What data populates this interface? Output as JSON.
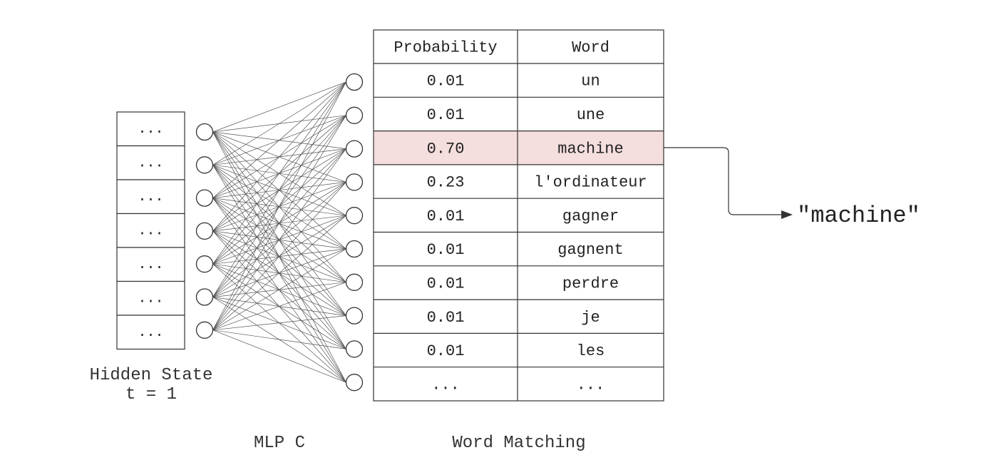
{
  "hidden_state": {
    "cells": [
      "...",
      "...",
      "...",
      "...",
      "...",
      "...",
      "..."
    ],
    "caption_line1": "Hidden State",
    "caption_line2": "t = 1"
  },
  "mlp": {
    "caption": "MLP C",
    "input_node_count": 7,
    "output_node_count": 10
  },
  "table": {
    "caption": "Word Matching",
    "headers": {
      "probability": "Probability",
      "word": "Word"
    },
    "rows": [
      {
        "probability": "0.01",
        "word": "un"
      },
      {
        "probability": "0.01",
        "word": "une"
      },
      {
        "probability": "0.70",
        "word": "machine"
      },
      {
        "probability": "0.23",
        "word": "l'ordinateur"
      },
      {
        "probability": "0.01",
        "word": "gagner"
      },
      {
        "probability": "0.01",
        "word": "gagnent"
      },
      {
        "probability": "0.01",
        "word": "perdre"
      },
      {
        "probability": "0.01",
        "word": "je"
      },
      {
        "probability": "0.01",
        "word": "les"
      },
      {
        "probability": "...",
        "word": "..."
      }
    ],
    "highlight_row": 2,
    "highlight_color": "#f5dede"
  },
  "output": {
    "word": "\"machine\""
  }
}
